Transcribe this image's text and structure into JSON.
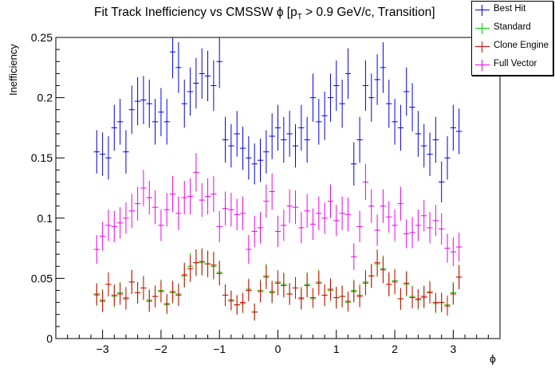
{
  "chart_data": {
    "type": "scatter",
    "title_main": "Fit Track Inefficiency vs CMSSW ϕ [p",
    "title_sub": "T",
    "title_tail": " > 0.9 GeV/c, Transition]",
    "xlabel": "ϕ",
    "ylabel": "Inefficiency",
    "xlim": [
      -3.8,
      3.8
    ],
    "ylim": [
      0,
      0.25
    ],
    "xticks": [
      "−3",
      "−2",
      "−1",
      "0",
      "1",
      "2",
      "3"
    ],
    "yticks": [
      "0",
      "0.05",
      "0.1",
      "0.15",
      "0.2",
      "0.25"
    ],
    "legend_position": "top-right",
    "x": [
      -3.1,
      -3.0,
      -2.9,
      -2.8,
      -2.7,
      -2.6,
      -2.5,
      -2.4,
      -2.3,
      -2.2,
      -2.1,
      -2.0,
      -1.9,
      -1.8,
      -1.7,
      -1.6,
      -1.5,
      -1.4,
      -1.3,
      -1.2,
      -1.1,
      -1.0,
      -0.9,
      -0.8,
      -0.7,
      -0.6,
      -0.5,
      -0.4,
      -0.3,
      -0.2,
      -0.1,
      0.0,
      0.1,
      0.2,
      0.3,
      0.4,
      0.5,
      0.6,
      0.7,
      0.8,
      0.9,
      1.0,
      1.1,
      1.2,
      1.3,
      1.4,
      1.5,
      1.6,
      1.7,
      1.8,
      1.9,
      2.0,
      2.1,
      2.2,
      2.3,
      2.4,
      2.5,
      2.6,
      2.7,
      2.8,
      2.9,
      3.0,
      3.1
    ],
    "series": [
      {
        "name": "Best Hit",
        "color": "#0000ee",
        "values": [
          0.155,
          0.153,
          0.15,
          0.175,
          0.18,
          0.155,
          0.19,
          0.197,
          0.198,
          0.195,
          0.18,
          0.188,
          0.18,
          0.238,
          0.225,
          0.195,
          0.205,
          0.212,
          0.22,
          0.218,
          0.21,
          0.23,
          0.165,
          0.16,
          0.17,
          0.158,
          0.15,
          0.145,
          0.148,
          0.155,
          0.168,
          0.175,
          0.165,
          0.17,
          0.16,
          0.175,
          0.165,
          0.2,
          0.18,
          0.185,
          0.2,
          0.21,
          0.195,
          0.22,
          0.145,
          0.165,
          0.21,
          0.2,
          0.215,
          0.225,
          0.195,
          0.18,
          0.175,
          0.205,
          0.192,
          0.17,
          0.16,
          0.153,
          0.165,
          0.13,
          0.15,
          0.175,
          0.172
        ],
        "errors": [
          0.018,
          0.018,
          0.018,
          0.019,
          0.019,
          0.018,
          0.02,
          0.02,
          0.02,
          0.02,
          0.019,
          0.02,
          0.019,
          0.022,
          0.021,
          0.02,
          0.02,
          0.021,
          0.021,
          0.021,
          0.021,
          0.022,
          0.019,
          0.018,
          0.019,
          0.018,
          0.018,
          0.017,
          0.018,
          0.018,
          0.019,
          0.019,
          0.019,
          0.019,
          0.018,
          0.019,
          0.019,
          0.02,
          0.019,
          0.02,
          0.02,
          0.021,
          0.02,
          0.021,
          0.018,
          0.019,
          0.021,
          0.02,
          0.021,
          0.021,
          0.02,
          0.019,
          0.019,
          0.02,
          0.02,
          0.019,
          0.018,
          0.018,
          0.019,
          0.017,
          0.018,
          0.019,
          0.019
        ]
      },
      {
        "name": "Standard",
        "color": "#00cc00",
        "values": [
          0.036,
          0.032,
          0.045,
          0.035,
          0.038,
          0.034,
          0.047,
          0.038,
          0.042,
          0.032,
          0.035,
          0.04,
          0.028,
          0.038,
          0.037,
          0.052,
          0.06,
          0.063,
          0.063,
          0.062,
          0.06,
          0.055,
          0.036,
          0.031,
          0.028,
          0.029,
          0.041,
          0.022,
          0.04,
          0.052,
          0.038,
          0.047,
          0.045,
          0.037,
          0.042,
          0.034,
          0.045,
          0.033,
          0.047,
          0.036,
          0.04,
          0.034,
          0.035,
          0.03,
          0.04,
          0.036,
          0.047,
          0.052,
          0.062,
          0.058,
          0.045,
          0.048,
          0.033,
          0.045,
          0.035,
          0.032,
          0.034,
          0.039,
          0.029,
          0.03,
          0.028,
          0.038,
          0.051
        ],
        "errors": [
          0.009,
          0.009,
          0.01,
          0.009,
          0.009,
          0.009,
          0.01,
          0.009,
          0.01,
          0.009,
          0.009,
          0.009,
          0.008,
          0.009,
          0.009,
          0.01,
          0.011,
          0.011,
          0.011,
          0.011,
          0.011,
          0.01,
          0.009,
          0.008,
          0.008,
          0.008,
          0.009,
          0.007,
          0.009,
          0.01,
          0.009,
          0.01,
          0.01,
          0.009,
          0.009,
          0.009,
          0.01,
          0.008,
          0.01,
          0.009,
          0.009,
          0.009,
          0.009,
          0.008,
          0.009,
          0.009,
          0.01,
          0.01,
          0.011,
          0.011,
          0.01,
          0.01,
          0.009,
          0.01,
          0.009,
          0.008,
          0.009,
          0.009,
          0.008,
          0.008,
          0.008,
          0.009,
          0.01
        ]
      },
      {
        "name": "Clone Engine",
        "color": "#dd0000",
        "values": [
          0.037,
          0.031,
          0.045,
          0.036,
          0.037,
          0.033,
          0.047,
          0.038,
          0.042,
          0.031,
          0.035,
          0.039,
          0.029,
          0.039,
          0.036,
          0.053,
          0.058,
          0.063,
          0.064,
          0.062,
          0.061,
          0.054,
          0.036,
          0.032,
          0.028,
          0.03,
          0.04,
          0.022,
          0.039,
          0.051,
          0.039,
          0.046,
          0.044,
          0.037,
          0.042,
          0.033,
          0.044,
          0.034,
          0.046,
          0.036,
          0.041,
          0.034,
          0.035,
          0.031,
          0.039,
          0.035,
          0.046,
          0.052,
          0.063,
          0.057,
          0.045,
          0.047,
          0.033,
          0.046,
          0.034,
          0.033,
          0.035,
          0.038,
          0.03,
          0.03,
          0.027,
          0.037,
          0.051
        ],
        "errors": [
          0.009,
          0.009,
          0.01,
          0.009,
          0.009,
          0.009,
          0.01,
          0.009,
          0.01,
          0.009,
          0.009,
          0.009,
          0.008,
          0.009,
          0.009,
          0.01,
          0.011,
          0.011,
          0.011,
          0.011,
          0.011,
          0.01,
          0.009,
          0.008,
          0.008,
          0.008,
          0.009,
          0.007,
          0.009,
          0.01,
          0.009,
          0.01,
          0.01,
          0.009,
          0.009,
          0.009,
          0.01,
          0.008,
          0.01,
          0.009,
          0.009,
          0.009,
          0.009,
          0.008,
          0.009,
          0.009,
          0.01,
          0.01,
          0.011,
          0.011,
          0.01,
          0.01,
          0.009,
          0.01,
          0.009,
          0.008,
          0.009,
          0.009,
          0.008,
          0.008,
          0.008,
          0.009,
          0.01
        ]
      },
      {
        "name": "Full Vector",
        "color": "#ee00ee",
        "values": [
          0.074,
          0.085,
          0.094,
          0.093,
          0.096,
          0.1,
          0.106,
          0.112,
          0.125,
          0.117,
          0.109,
          0.094,
          0.107,
          0.12,
          0.104,
          0.117,
          0.118,
          0.138,
          0.115,
          0.118,
          0.12,
          0.093,
          0.108,
          0.107,
          0.103,
          0.104,
          0.074,
          0.089,
          0.092,
          0.114,
          0.122,
          0.089,
          0.094,
          0.11,
          0.109,
          0.092,
          0.106,
          0.095,
          0.104,
          0.1,
          0.114,
          0.098,
          0.104,
          0.103,
          0.068,
          0.093,
          0.13,
          0.11,
          0.09,
          0.11,
          0.101,
          0.094,
          0.112,
          0.087,
          0.088,
          0.094,
          0.102,
          0.092,
          0.098,
          0.091,
          0.075,
          0.072,
          0.076
        ],
        "errors": [
          0.012,
          0.012,
          0.013,
          0.013,
          0.013,
          0.013,
          0.014,
          0.014,
          0.015,
          0.014,
          0.014,
          0.013,
          0.014,
          0.015,
          0.014,
          0.014,
          0.015,
          0.016,
          0.014,
          0.015,
          0.015,
          0.013,
          0.014,
          0.014,
          0.013,
          0.014,
          0.012,
          0.013,
          0.013,
          0.014,
          0.015,
          0.013,
          0.013,
          0.014,
          0.014,
          0.013,
          0.014,
          0.013,
          0.014,
          0.013,
          0.014,
          0.013,
          0.014,
          0.014,
          0.011,
          0.013,
          0.015,
          0.014,
          0.013,
          0.014,
          0.013,
          0.013,
          0.014,
          0.012,
          0.013,
          0.013,
          0.013,
          0.013,
          0.013,
          0.013,
          0.012,
          0.012,
          0.012
        ]
      }
    ]
  }
}
